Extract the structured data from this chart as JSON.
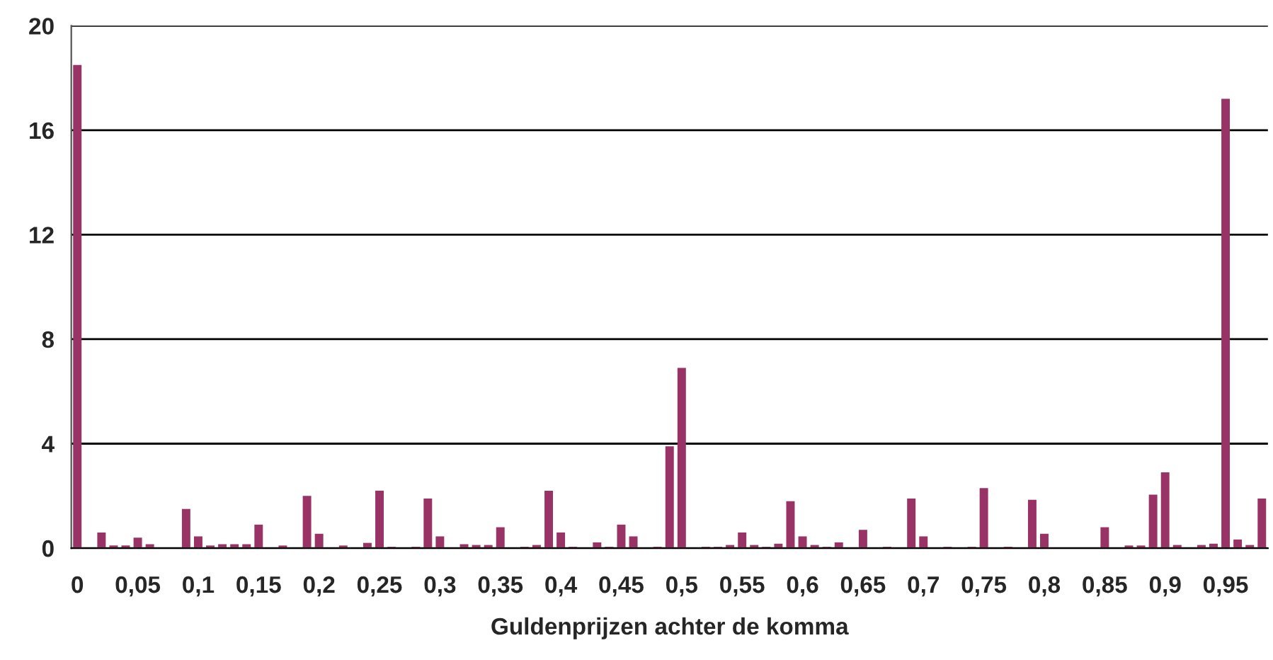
{
  "chart_data": {
    "type": "bar",
    "xlabel": "Guldenprijzen achter de komma",
    "categories": [
      "0",
      null,
      null,
      null,
      null,
      "0,05",
      null,
      null,
      null,
      null,
      "0,1",
      null,
      null,
      null,
      null,
      "0,15",
      null,
      null,
      null,
      null,
      "0,2",
      null,
      null,
      null,
      null,
      "0,25",
      null,
      null,
      null,
      null,
      "0,3",
      null,
      null,
      null,
      null,
      "0,35",
      null,
      null,
      null,
      null,
      "0,4",
      null,
      null,
      null,
      null,
      "0,45",
      null,
      null,
      null,
      null,
      "0,5",
      null,
      null,
      null,
      null,
      "0,55",
      null,
      null,
      null,
      null,
      "0,6",
      null,
      null,
      null,
      null,
      "0,65",
      null,
      null,
      null,
      null,
      "0,7",
      null,
      null,
      null,
      null,
      "0,75",
      null,
      null,
      null,
      null,
      "0,8",
      null,
      null,
      null,
      null,
      "0,85",
      null,
      null,
      null,
      null,
      "0,9",
      null,
      null,
      null,
      null,
      "0,95",
      null,
      null,
      null
    ],
    "values": [
      18.5,
      0,
      0.6,
      0.1,
      0.1,
      0.4,
      0.15,
      0,
      0,
      1.5,
      0.45,
      0.1,
      0.15,
      0.15,
      0.15,
      0.9,
      0,
      0.1,
      0,
      2.0,
      0.55,
      0,
      0.1,
      0,
      0.2,
      2.2,
      0.05,
      0,
      0.05,
      1.9,
      0.45,
      0,
      0.15,
      0.12,
      0.12,
      0.8,
      0,
      0.05,
      0.12,
      2.2,
      0.6,
      0.05,
      0,
      0.22,
      0.05,
      0.9,
      0.45,
      0,
      0.05,
      3.9,
      6.9,
      0,
      0.05,
      0.05,
      0.12,
      0.6,
      0.12,
      0.05,
      0.17,
      1.8,
      0.45,
      0.12,
      0.05,
      0.22,
      0,
      0.7,
      0,
      0.05,
      0,
      1.9,
      0.45,
      0,
      0.05,
      0,
      0.05,
      2.3,
      0,
      0.05,
      0,
      1.85,
      0.55,
      0,
      0,
      0,
      0,
      0.8,
      0,
      0.1,
      0.1,
      2.05,
      2.9,
      0.12,
      0,
      0.12,
      0.17,
      17.2,
      0.33,
      0.12,
      1.9
    ],
    "color": "#993366",
    "ylim": [
      0,
      20
    ],
    "yticks": [
      0,
      4,
      8,
      12,
      16,
      20
    ],
    "grid": "y",
    "legend": false
  }
}
